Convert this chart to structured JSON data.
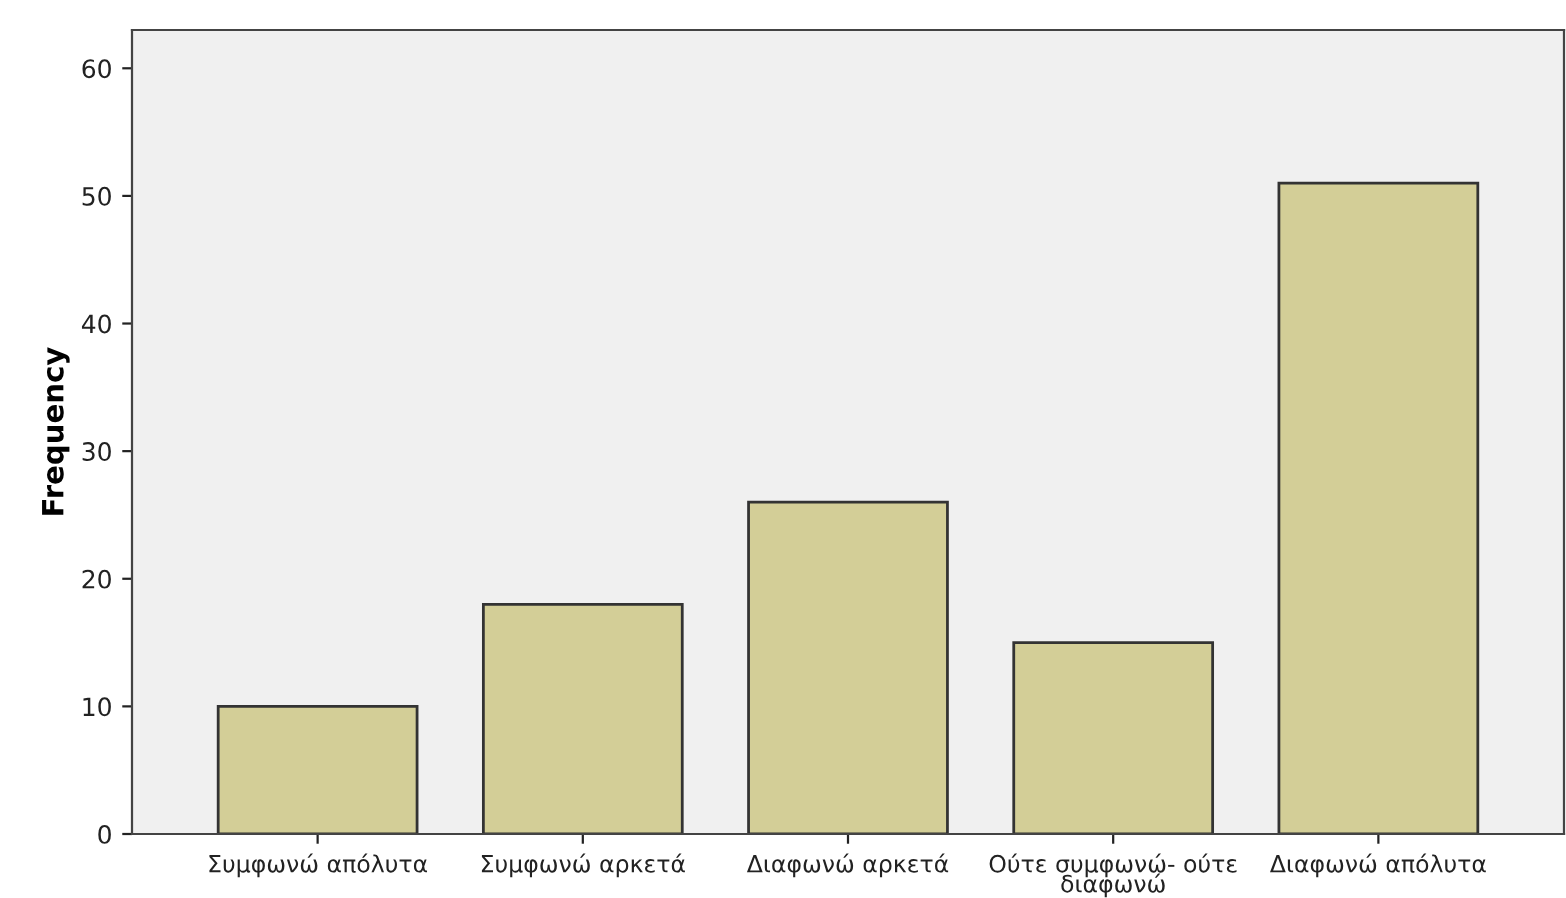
{
  "chart_data": {
    "type": "bar",
    "ylabel": "Frequency",
    "categories": [
      "Συμφωνώ απόλυτα",
      "Συμφωνώ αρκετά",
      "Διαφωνώ αρκετά",
      "Ούτε συμφωνώ- ούτε διαφωνώ",
      "Διαφωνώ απόλυτα"
    ],
    "values": [
      10,
      18,
      26,
      15,
      51
    ],
    "color": "#d3ce97",
    "ylim": [
      0,
      63
    ],
    "yticks": [
      0,
      10,
      20,
      30,
      40,
      50,
      60
    ],
    "grid": false
  }
}
